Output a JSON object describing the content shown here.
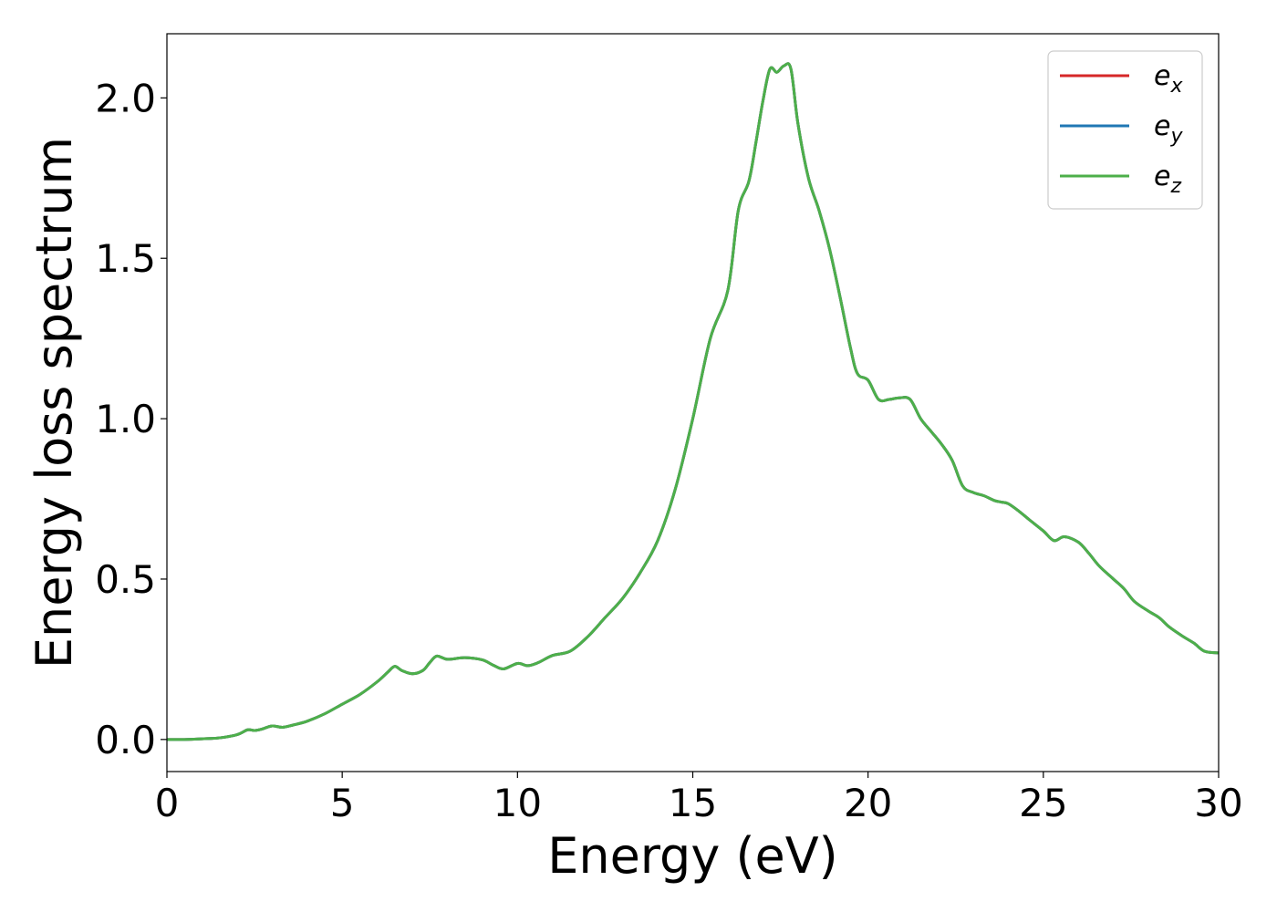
{
  "chart_data": {
    "type": "line",
    "title": "",
    "xlabel": "Energy (eV)",
    "ylabel": "Energy loss spectrum",
    "xlim": [
      0,
      30
    ],
    "ylim": [
      -0.1,
      2.2
    ],
    "xticks": [
      "0",
      "5",
      "10",
      "15",
      "20",
      "25",
      "30"
    ],
    "yticks": [
      "0.0",
      "0.5",
      "1.0",
      "1.5",
      "2.0"
    ],
    "grid": false,
    "legend_position": "top-right",
    "legend": [
      {
        "base": "e",
        "sub": "x"
      },
      {
        "base": "e",
        "sub": "y"
      },
      {
        "base": "e",
        "sub": "z"
      }
    ],
    "colors": [
      "#d62728",
      "#1f77b4",
      "#4daf4a"
    ],
    "x": [
      0,
      0.5,
      1,
      1.5,
      2,
      2.3,
      2.5,
      2.7,
      3,
      3.3,
      3.6,
      4,
      4.5,
      5,
      5.5,
      6,
      6.3,
      6.5,
      6.7,
      7,
      7.3,
      7.5,
      7.7,
      8,
      8.5,
      9,
      9.3,
      9.6,
      10,
      10.3,
      10.6,
      11,
      11.5,
      12,
      12.5,
      13,
      13.5,
      14,
      14.5,
      15,
      15.5,
      16,
      16.3,
      16.6,
      16.8,
      17,
      17.2,
      17.4,
      17.6,
      17.8,
      18,
      18.3,
      18.6,
      18.9,
      19.2,
      19.5,
      19.7,
      20,
      20.3,
      20.6,
      20.9,
      21.2,
      21.5,
      21.8,
      22.1,
      22.4,
      22.7,
      23,
      23.3,
      23.6,
      23.8,
      24,
      24.3,
      24.6,
      25,
      25.3,
      25.6,
      26,
      26.3,
      26.6,
      27,
      27.3,
      27.6,
      28,
      28.3,
      28.6,
      29,
      29.3,
      29.6,
      30
    ],
    "series": [
      {
        "name": "e_x",
        "values": [
          0.0,
          0.0,
          0.002,
          0.005,
          0.015,
          0.03,
          0.028,
          0.032,
          0.042,
          0.038,
          0.045,
          0.057,
          0.08,
          0.11,
          0.14,
          0.18,
          0.21,
          0.228,
          0.215,
          0.205,
          0.215,
          0.24,
          0.26,
          0.25,
          0.255,
          0.248,
          0.232,
          0.22,
          0.237,
          0.23,
          0.24,
          0.262,
          0.275,
          0.32,
          0.38,
          0.44,
          0.52,
          0.62,
          0.78,
          1.0,
          1.25,
          1.4,
          1.65,
          1.74,
          1.86,
          1.99,
          2.09,
          2.08,
          2.1,
          2.09,
          1.92,
          1.75,
          1.65,
          1.53,
          1.38,
          1.22,
          1.14,
          1.12,
          1.06,
          1.06,
          1.065,
          1.06,
          1.0,
          0.96,
          0.92,
          0.87,
          0.79,
          0.77,
          0.76,
          0.745,
          0.74,
          0.735,
          0.712,
          0.685,
          0.65,
          0.62,
          0.632,
          0.615,
          0.58,
          0.54,
          0.5,
          0.47,
          0.43,
          0.4,
          0.38,
          0.35,
          0.32,
          0.3,
          0.275,
          0.27
        ]
      },
      {
        "name": "e_y",
        "values": [
          0.0,
          0.0,
          0.002,
          0.005,
          0.015,
          0.03,
          0.028,
          0.032,
          0.042,
          0.038,
          0.045,
          0.057,
          0.08,
          0.11,
          0.14,
          0.18,
          0.21,
          0.228,
          0.215,
          0.205,
          0.215,
          0.24,
          0.26,
          0.25,
          0.255,
          0.248,
          0.232,
          0.22,
          0.237,
          0.23,
          0.24,
          0.262,
          0.275,
          0.32,
          0.38,
          0.44,
          0.52,
          0.62,
          0.78,
          1.0,
          1.25,
          1.4,
          1.65,
          1.74,
          1.86,
          1.99,
          2.09,
          2.08,
          2.1,
          2.09,
          1.92,
          1.75,
          1.65,
          1.53,
          1.38,
          1.22,
          1.14,
          1.12,
          1.06,
          1.06,
          1.065,
          1.06,
          1.0,
          0.96,
          0.92,
          0.87,
          0.79,
          0.77,
          0.76,
          0.745,
          0.74,
          0.735,
          0.712,
          0.685,
          0.65,
          0.62,
          0.632,
          0.615,
          0.58,
          0.54,
          0.5,
          0.47,
          0.43,
          0.4,
          0.38,
          0.35,
          0.32,
          0.3,
          0.275,
          0.27
        ]
      },
      {
        "name": "e_z",
        "values": [
          0.0,
          0.0,
          0.002,
          0.005,
          0.015,
          0.03,
          0.028,
          0.032,
          0.042,
          0.038,
          0.045,
          0.057,
          0.08,
          0.11,
          0.14,
          0.18,
          0.21,
          0.228,
          0.215,
          0.205,
          0.215,
          0.24,
          0.26,
          0.25,
          0.255,
          0.248,
          0.232,
          0.22,
          0.237,
          0.23,
          0.24,
          0.262,
          0.275,
          0.32,
          0.38,
          0.44,
          0.52,
          0.62,
          0.78,
          1.0,
          1.25,
          1.4,
          1.65,
          1.74,
          1.86,
          1.99,
          2.09,
          2.08,
          2.1,
          2.09,
          1.92,
          1.75,
          1.65,
          1.53,
          1.38,
          1.22,
          1.14,
          1.12,
          1.06,
          1.06,
          1.065,
          1.06,
          1.0,
          0.96,
          0.92,
          0.87,
          0.79,
          0.77,
          0.76,
          0.745,
          0.74,
          0.735,
          0.712,
          0.685,
          0.65,
          0.62,
          0.632,
          0.615,
          0.58,
          0.54,
          0.5,
          0.47,
          0.43,
          0.4,
          0.38,
          0.35,
          0.32,
          0.3,
          0.275,
          0.27
        ]
      }
    ]
  }
}
